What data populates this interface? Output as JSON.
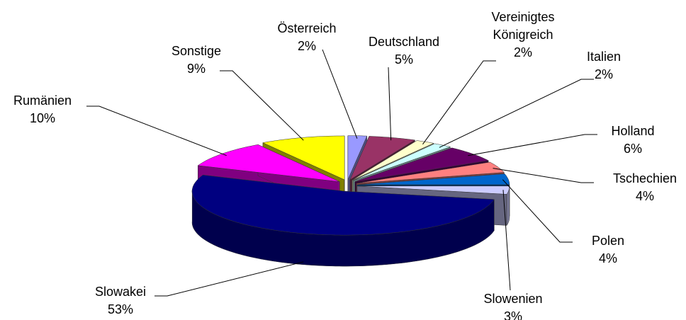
{
  "chart_data": {
    "type": "pie",
    "categories": [
      "Österreich",
      "Deutschland",
      "Vereinigtes Königreich",
      "Italien",
      "Holland",
      "Tschechien",
      "Polen",
      "Slowenien",
      "Slowakei",
      "Rumänien",
      "Sonstige"
    ],
    "values": [
      2,
      5,
      2,
      2,
      6,
      4,
      4,
      3,
      53,
      10,
      9
    ],
    "value_labels": [
      "2%",
      "5%",
      "2%",
      "2%",
      "6%",
      "4%",
      "4%",
      "3%",
      "53%",
      "10%",
      "9%"
    ],
    "colors": [
      "#9999ff",
      "#993366",
      "#ffffcc",
      "#ccffff",
      "#660066",
      "#ff8080",
      "#0066cc",
      "#ccccff",
      "#000080",
      "#ff00ff",
      "#ffff00"
    ]
  }
}
